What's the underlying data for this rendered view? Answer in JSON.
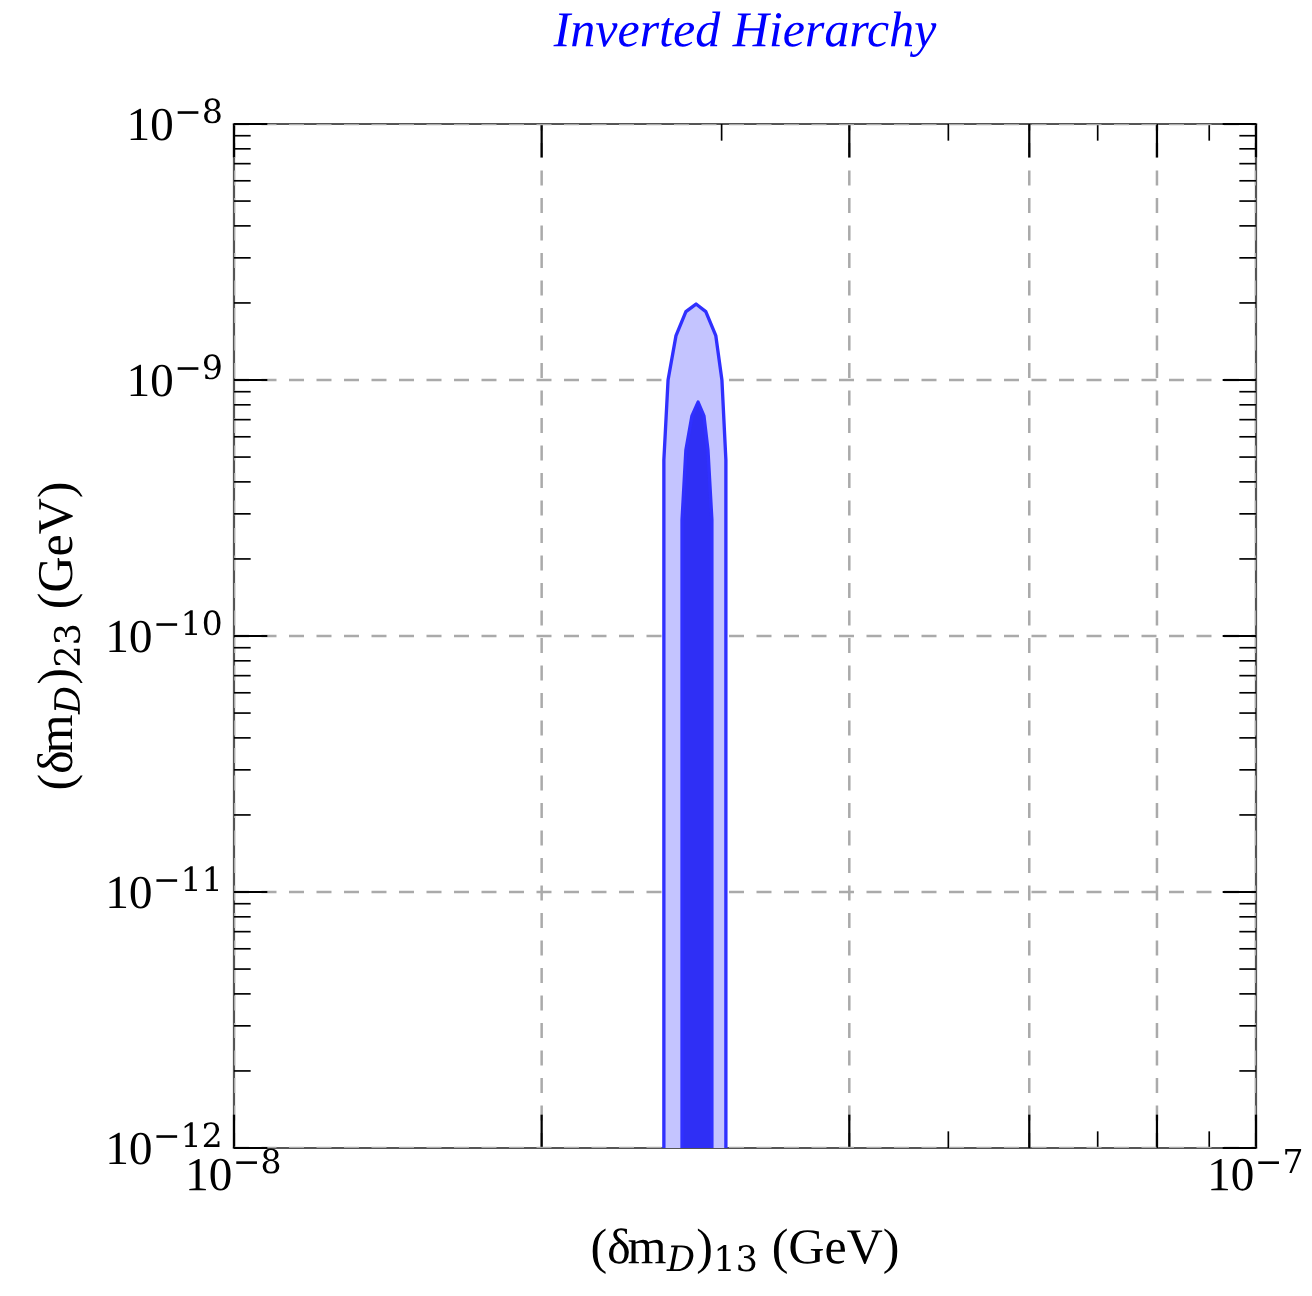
{
  "chart_data": {
    "type": "area",
    "title": "Inverted Hierarchy",
    "xlabel": "(δm$_{D}$)$_{13}$ (GeV)",
    "ylabel": "(δm$_{D}$)$_{23}$ (GeV)",
    "log": "xy",
    "grid": true,
    "line_style": "dashed",
    "xlim": [
      1e-08,
      1e-07
    ],
    "ylim": [
      1e-12,
      1e-08
    ],
    "xticks": [
      {
        "value": 1e-08,
        "label": "10$^{−8}$"
      },
      {
        "value": 2e-08,
        "label": null
      },
      {
        "value": 4e-08,
        "label": null
      },
      {
        "value": 6e-08,
        "label": null
      },
      {
        "value": 8e-08,
        "label": null
      },
      {
        "value": 1e-07,
        "label": "10$^{−7}$"
      }
    ],
    "yticks": [
      {
        "value": 1e-12,
        "label": "10$^{−12}$"
      },
      {
        "value": 1e-11,
        "label": "10$^{−11}$"
      },
      {
        "value": 1e-10,
        "label": "10$^{−10}$"
      },
      {
        "value": 1e-09,
        "label": "10$^{−9}$"
      },
      {
        "value": 1e-08,
        "label": "10$^{−8}$"
      }
    ],
    "series": [
      {
        "color": "#c4c4ff",
        "x": [
          2.634e-08,
          2.634e-08,
          2.659e-08,
          2.707e-08,
          2.768e-08,
          2.832e-08,
          2.895e-08,
          2.961e-08,
          3.002e-08,
          3.029e-08,
          3.029e-08
        ],
        "values": [
          1e-12,
          4.87e-10,
          1e-09,
          1.49e-09,
          1.85e-09,
          1.98e-09,
          1.85e-09,
          1.49e-09,
          1e-09,
          4.87e-10,
          1e-12
        ]
      },
      {
        "color": "#2f2ff5",
        "x": [
          2.744e-08,
          2.744e-08,
          2.768e-08,
          2.806e-08,
          2.845e-08,
          2.883e-08,
          2.909e-08,
          2.935e-08,
          2.935e-08
        ],
        "values": [
          1e-12,
          2.84e-10,
          5.33e-10,
          7.24e-10,
          8.2e-10,
          7.24e-10,
          5.33e-10,
          2.84e-10,
          1e-12
        ]
      }
    ]
  }
}
